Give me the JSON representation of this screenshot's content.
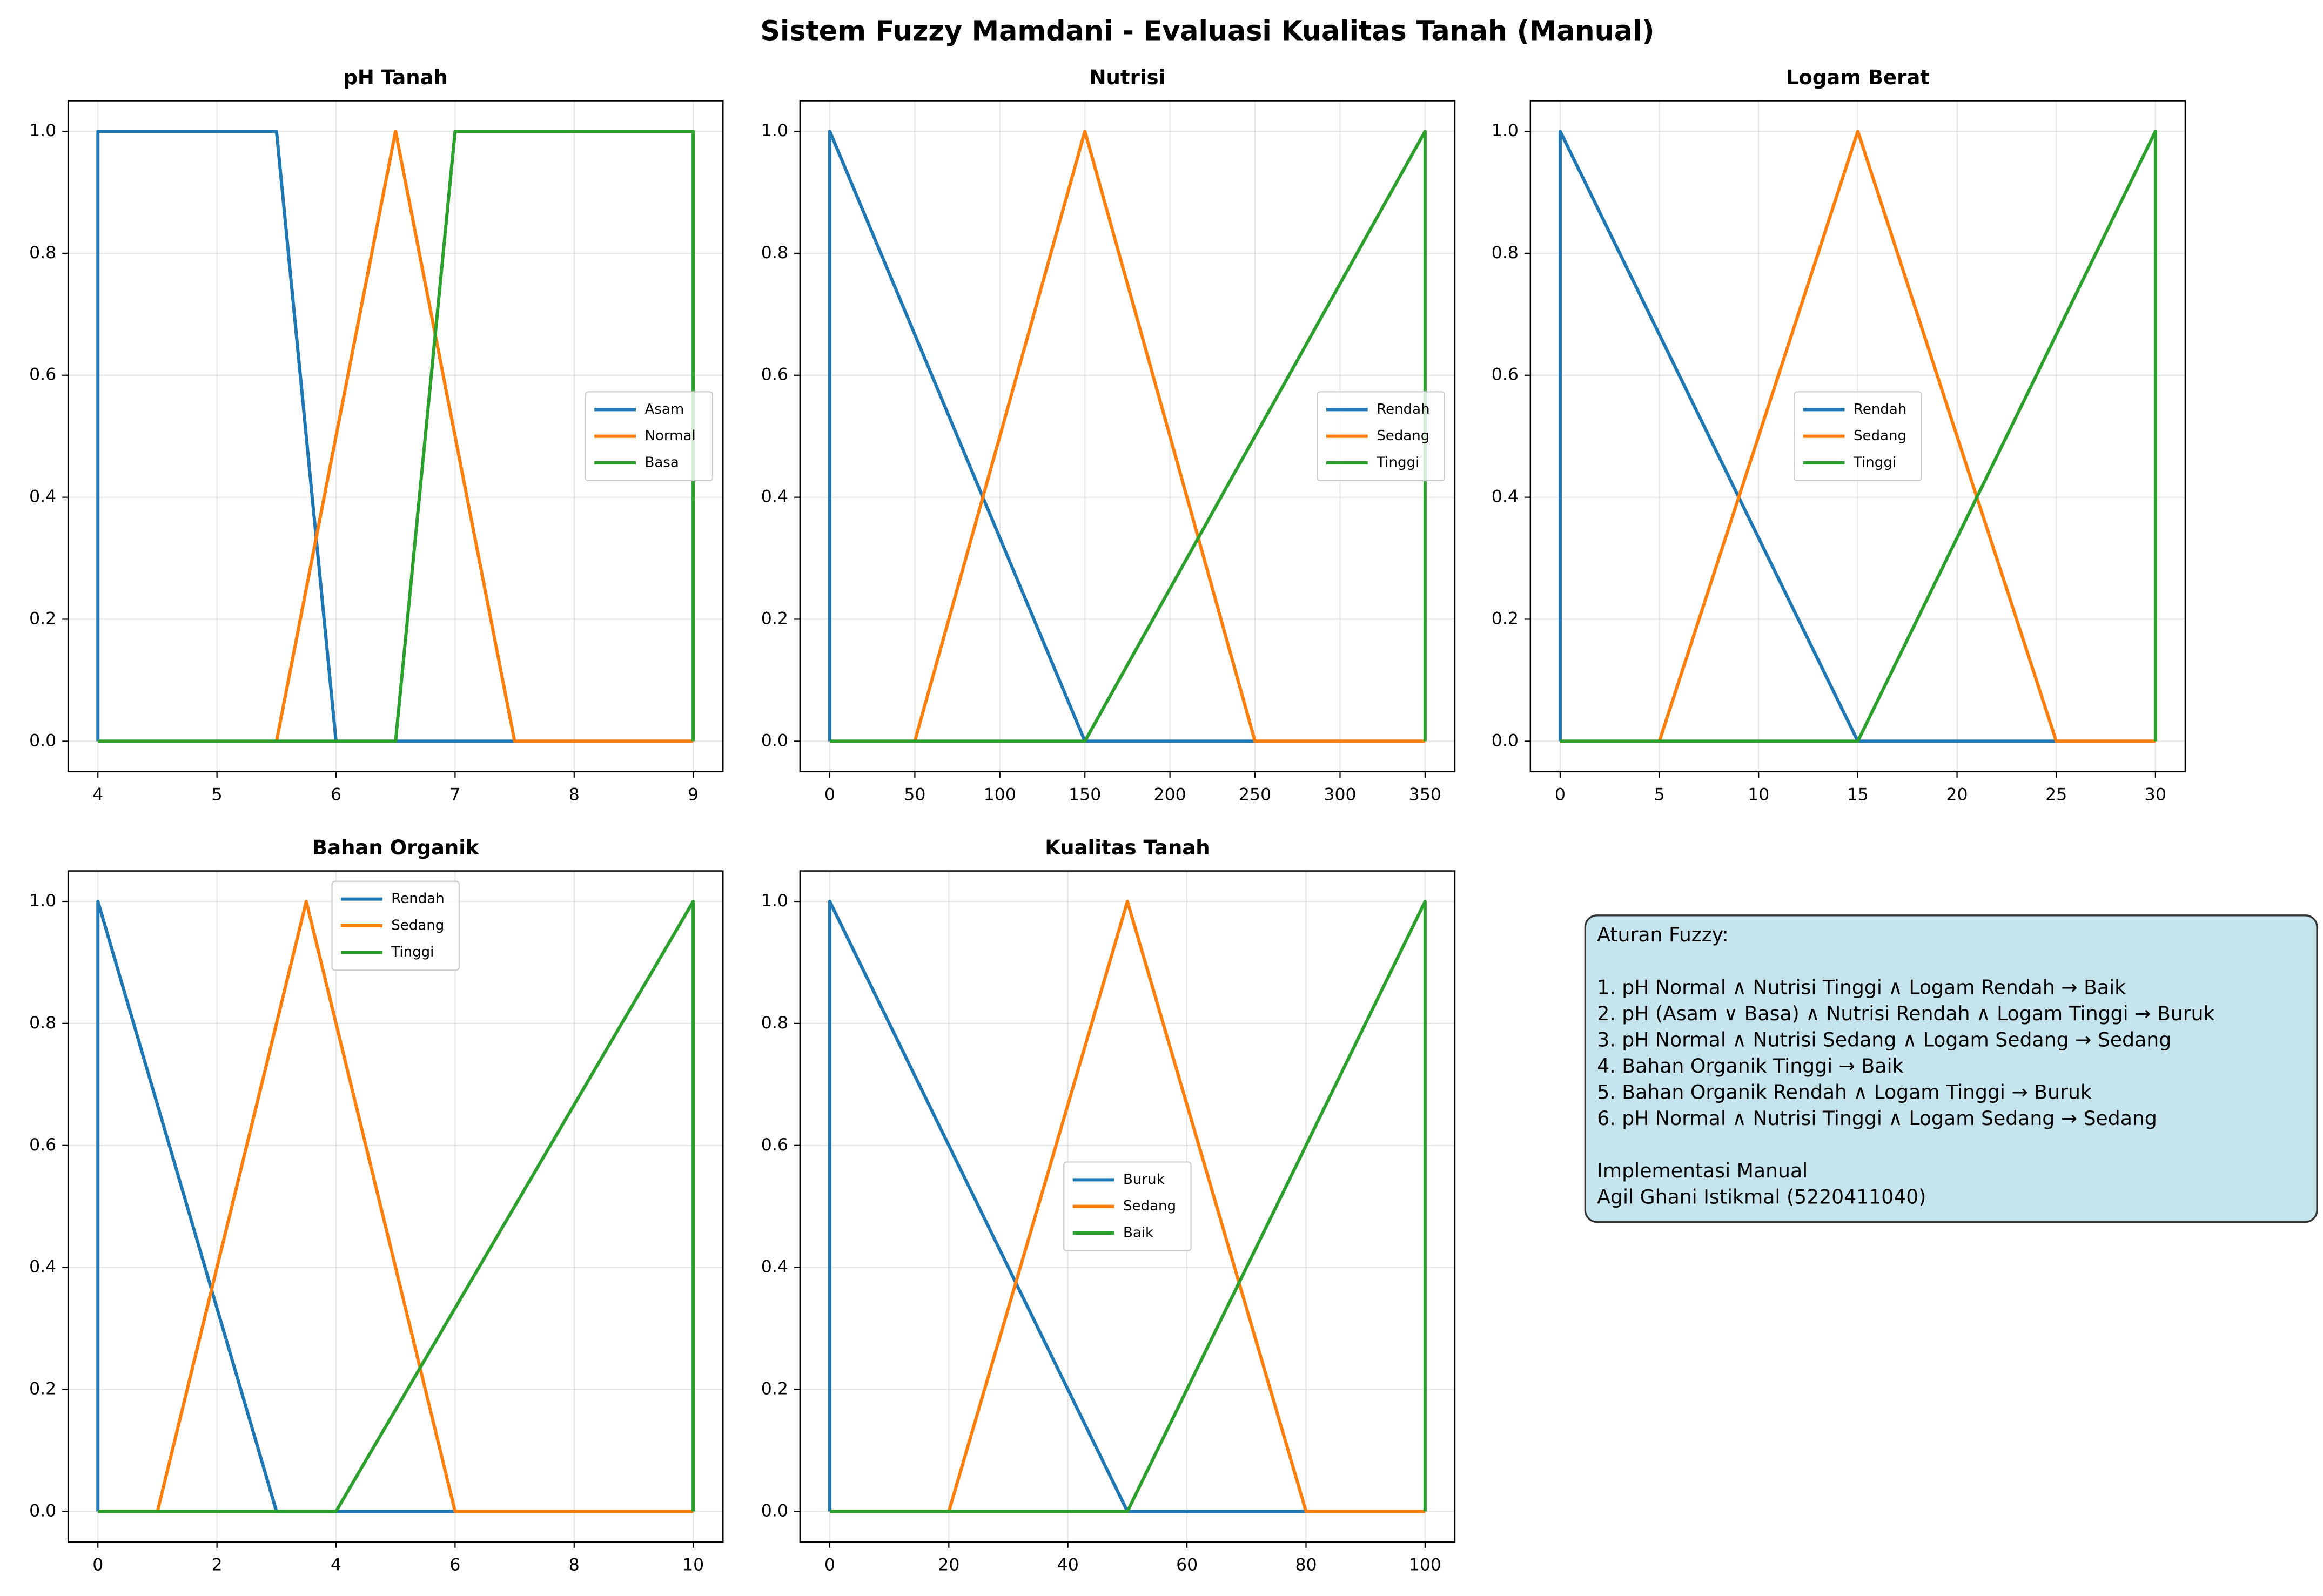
{
  "title": "Sistem Fuzzy Mamdani - Evaluasi Kualitas Tanah (Manual)",
  "chart_data": [
    {
      "type": "line",
      "title": "pH Tanah",
      "xlim": [
        3.75,
        9.25
      ],
      "ylim": [
        -0.05,
        1.05
      ],
      "xticks": [
        4,
        5,
        6,
        7,
        8,
        9
      ],
      "yticks": [
        {
          "value": 0,
          "label": "0.0"
        },
        0.2,
        0.4,
        0.6,
        0.8,
        {
          "value": 1,
          "label": "1.0"
        }
      ],
      "grid": true,
      "legend_loc": "center right",
      "series": [
        {
          "name": "Asam",
          "color": "#1f77b4",
          "x": [
            4,
            4,
            5.5,
            6,
            9
          ],
          "values": [
            0,
            1,
            1,
            0,
            0
          ]
        },
        {
          "name": "Normal",
          "color": "#ff7f0e",
          "x": [
            4,
            5.5,
            6.5,
            7.5,
            9
          ],
          "values": [
            0,
            0,
            1,
            0,
            0
          ]
        },
        {
          "name": "Basa",
          "color": "#2ca02c",
          "x": [
            4,
            6.5,
            7,
            9,
            9
          ],
          "values": [
            0,
            0,
            1,
            1,
            0
          ]
        }
      ]
    },
    {
      "type": "line",
      "title": "Nutrisi",
      "xlim": [
        -17.5,
        367.5
      ],
      "ylim": [
        -0.05,
        1.05
      ],
      "xticks": [
        0,
        50,
        100,
        150,
        200,
        250,
        300,
        350
      ],
      "yticks": [
        {
          "value": 0,
          "label": "0.0"
        },
        0.2,
        0.4,
        0.6,
        0.8,
        {
          "value": 1,
          "label": "1.0"
        }
      ],
      "grid": true,
      "legend_loc": "center right",
      "series": [
        {
          "name": "Rendah",
          "color": "#1f77b4",
          "x": [
            0,
            0,
            150,
            350
          ],
          "values": [
            0,
            1,
            0,
            0
          ]
        },
        {
          "name": "Sedang",
          "color": "#ff7f0e",
          "x": [
            0,
            50,
            150,
            250,
            350
          ],
          "values": [
            0,
            0,
            1,
            0,
            0
          ]
        },
        {
          "name": "Tinggi",
          "color": "#2ca02c",
          "x": [
            0,
            150,
            350,
            350
          ],
          "values": [
            0,
            0,
            1,
            0
          ]
        }
      ]
    },
    {
      "type": "line",
      "title": "Logam Berat",
      "xlim": [
        -1.5,
        31.5
      ],
      "ylim": [
        -0.05,
        1.05
      ],
      "xticks": [
        0,
        5,
        10,
        15,
        20,
        25,
        30
      ],
      "yticks": [
        {
          "value": 0,
          "label": "0.0"
        },
        0.2,
        0.4,
        0.6,
        0.8,
        {
          "value": 1,
          "label": "1.0"
        }
      ],
      "grid": true,
      "legend_loc": "center",
      "series": [
        {
          "name": "Rendah",
          "color": "#1f77b4",
          "x": [
            0,
            0,
            15,
            30
          ],
          "values": [
            0,
            1,
            0,
            0
          ]
        },
        {
          "name": "Sedang",
          "color": "#ff7f0e",
          "x": [
            0,
            5,
            15,
            25,
            30
          ],
          "values": [
            0,
            0,
            1,
            0,
            0
          ]
        },
        {
          "name": "Tinggi",
          "color": "#2ca02c",
          "x": [
            0,
            15,
            30,
            30
          ],
          "values": [
            0,
            0,
            1,
            0
          ]
        }
      ]
    },
    {
      "type": "line",
      "title": "Bahan Organik",
      "xlim": [
        -0.5,
        10.5
      ],
      "ylim": [
        -0.05,
        1.05
      ],
      "xticks": [
        0,
        2,
        4,
        6,
        8,
        10
      ],
      "yticks": [
        {
          "value": 0,
          "label": "0.0"
        },
        0.2,
        0.4,
        0.6,
        0.8,
        {
          "value": 1,
          "label": "1.0"
        }
      ],
      "grid": true,
      "legend_loc": "upper center",
      "series": [
        {
          "name": "Rendah",
          "color": "#1f77b4",
          "x": [
            0,
            0,
            3,
            10
          ],
          "values": [
            0,
            1,
            0,
            0
          ]
        },
        {
          "name": "Sedang",
          "color": "#ff7f0e",
          "x": [
            0,
            1,
            3.5,
            6,
            10
          ],
          "values": [
            0,
            0,
            1,
            0,
            0
          ]
        },
        {
          "name": "Tinggi",
          "color": "#2ca02c",
          "x": [
            0,
            4,
            10,
            10
          ],
          "values": [
            0,
            0,
            1,
            0
          ]
        }
      ]
    },
    {
      "type": "line",
      "title": "Kualitas Tanah",
      "xlim": [
        -5,
        105
      ],
      "ylim": [
        -0.05,
        1.05
      ],
      "xticks": [
        0,
        20,
        40,
        60,
        80,
        100
      ],
      "yticks": [
        {
          "value": 0,
          "label": "0.0"
        },
        0.2,
        0.4,
        0.6,
        0.8,
        {
          "value": 1,
          "label": "1.0"
        }
      ],
      "grid": true,
      "legend_loc": "center",
      "series": [
        {
          "name": "Buruk",
          "color": "#1f77b4",
          "x": [
            0,
            0,
            50,
            100
          ],
          "values": [
            0,
            1,
            0,
            0
          ]
        },
        {
          "name": "Sedang",
          "color": "#ff7f0e",
          "x": [
            0,
            20,
            50,
            80,
            100
          ],
          "values": [
            0,
            0,
            1,
            0,
            0
          ]
        },
        {
          "name": "Baik",
          "color": "#2ca02c",
          "x": [
            0,
            50,
            100,
            100
          ],
          "values": [
            0,
            0,
            1,
            0
          ]
        }
      ]
    }
  ],
  "rules_box": {
    "title": "Aturan Fuzzy:",
    "rules": [
      "1. pH Normal ∧ Nutrisi Tinggi ∧ Logam Rendah → Baik",
      "2. pH (Asam ∨ Basa) ∧ Nutrisi Rendah ∧ Logam Tinggi → Buruk",
      "3. pH Normal ∧ Nutrisi Sedang ∧ Logam Sedang → Sedang",
      "4. Bahan Organik Tinggi → Baik",
      "5. Bahan Organik Rendah ∧ Logam Tinggi → Buruk",
      "6. pH Normal ∧ Nutrisi Tinggi ∧ Logam Sedang → Sedang"
    ],
    "footer": [
      "Implementasi Manual",
      "Agil Ghani Istikmal (5220411040)"
    ]
  }
}
